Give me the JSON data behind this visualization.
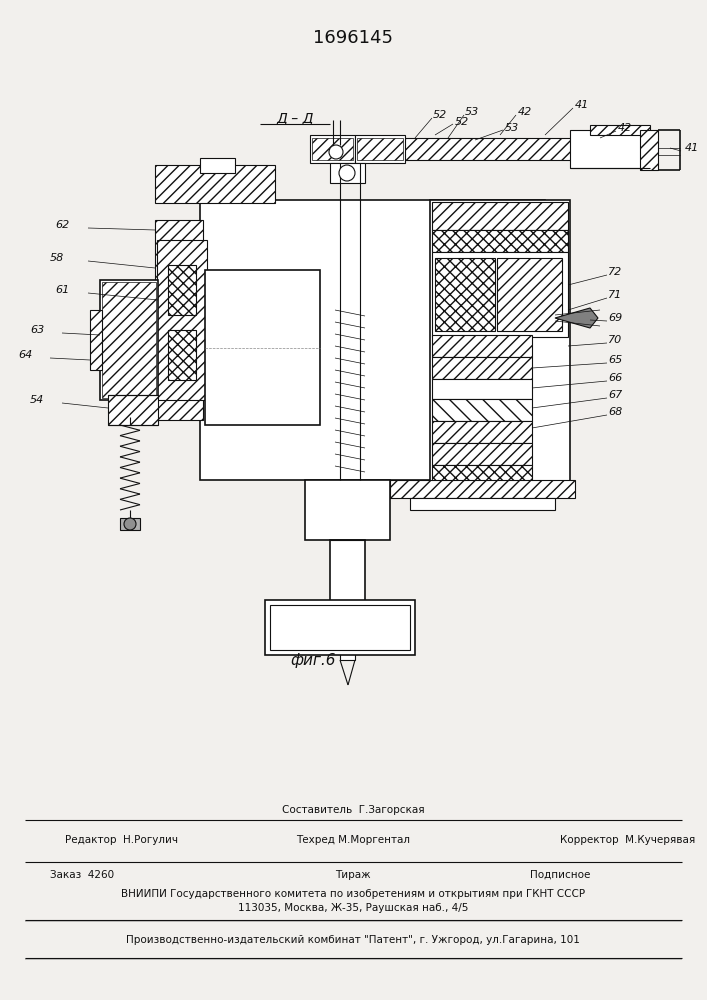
{
  "patent_number": "1696145",
  "fig_label": "фиг.6",
  "section_label": "Д – Д",
  "bg_color": "#f2f0ed",
  "drawing_color": "#111111",
  "footer_sestavitel": "Составитель  Г.Загорская",
  "footer_redaktor": "Редактор  Н.Рогулич",
  "footer_tekhred": "Техред М.Моргентал",
  "footer_korrektor": "Корректор  М.Кучерявая",
  "footer_zakaz": "Заказ  4260",
  "footer_tirazh": "Тираж",
  "footer_podpisnoe": "Подписное",
  "footer_vniipи": "ВНИИПИ Государственного комитета по изобретениям и открытиям при ГКНТ СССР",
  "footer_addr": "113035, Москва, Ж-35, Раушская наб., 4/5",
  "footer_patent": "Производственно-издательский комбинат \"Патент\", г. Ужгород, ул.Гагарина, 101"
}
